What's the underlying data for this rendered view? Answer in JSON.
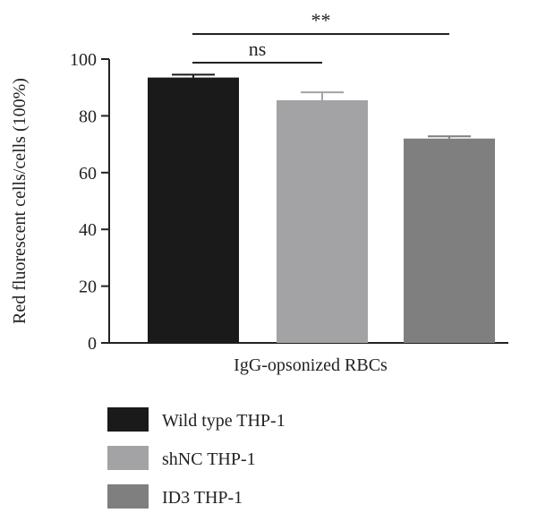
{
  "chart_data": {
    "type": "bar",
    "categories": [
      "IgG-opsonized RBCs"
    ],
    "series": [
      {
        "name": "Wild type THP-1",
        "values": [
          93.5
        ],
        "error": [
          1.0
        ],
        "color": "#1a1a1a"
      },
      {
        "name": "shNC THP-1",
        "values": [
          85.5
        ],
        "error": [
          2.8
        ],
        "color": "#a3a3a5"
      },
      {
        "name": "ID3 THP-1",
        "values": [
          72.0
        ],
        "error": [
          0.8
        ],
        "color": "#7f7f7f"
      }
    ],
    "xlabel": "IgG-opsonized RBCs",
    "ylabel": "Red fluorescent cells/cells (100%)",
    "ylim": [
      0,
      100
    ],
    "yticks": [
      0,
      20,
      40,
      60,
      80,
      100
    ],
    "grid": false,
    "legend_position": "bottom-left",
    "annotations": [
      {
        "text": "ns",
        "from": "Wild type THP-1",
        "to": "shNC THP-1"
      },
      {
        "text": "**",
        "from": "Wild type THP-1",
        "to": "ID3 THP-1"
      }
    ]
  }
}
